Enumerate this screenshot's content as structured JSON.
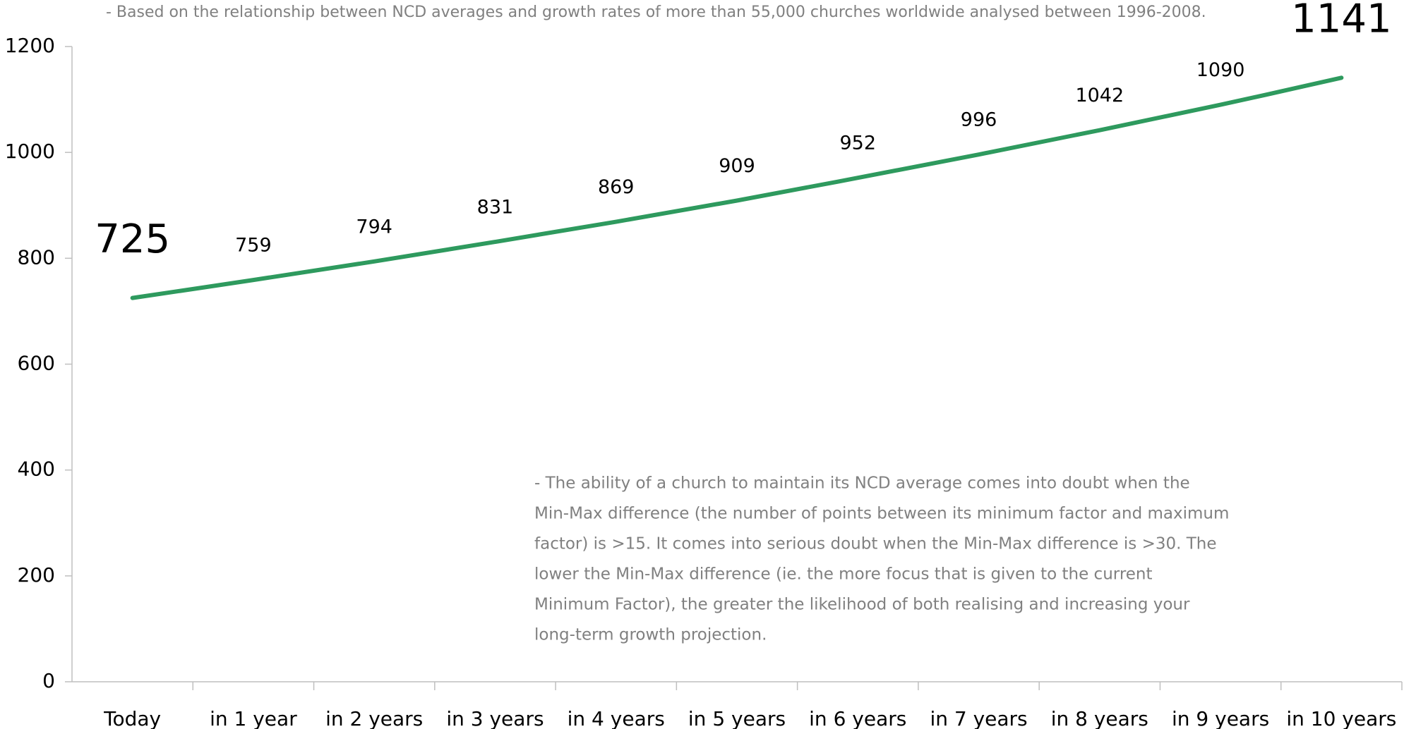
{
  "chart_data": {
    "type": "line",
    "subtitle": "- Based on the relationship between NCD averages and growth rates of more than 55,000 churches worldwide analysed between 1996-2008.",
    "annotation": [
      "- The ability of a church to maintain its NCD average comes into doubt when the",
      "Min-Max difference (the number of points between its minimum factor and maximum",
      "factor) is >15. It comes into serious doubt when the Min-Max difference is >30. The",
      "lower the Min-Max difference (ie. the more focus that is given to the current",
      "Minimum Factor), the greater the likelihood of both realising and increasing your",
      "long-term growth projection."
    ],
    "categories": [
      "Today",
      "in 1 year",
      "in 2 years",
      "in 3 years",
      "in 4 years",
      "in 5 years",
      "in 6 years",
      "in 7 years",
      "in 8 years",
      "in 9 years",
      "in 10 years"
    ],
    "values": [
      725,
      759,
      794,
      831,
      869,
      909,
      952,
      996,
      1042,
      1090,
      1141
    ],
    "color": "#2e9a5e",
    "ylim": [
      0,
      1200
    ],
    "yticks": [
      0,
      200,
      400,
      600,
      800,
      1000,
      1200
    ],
    "grid": false
  }
}
